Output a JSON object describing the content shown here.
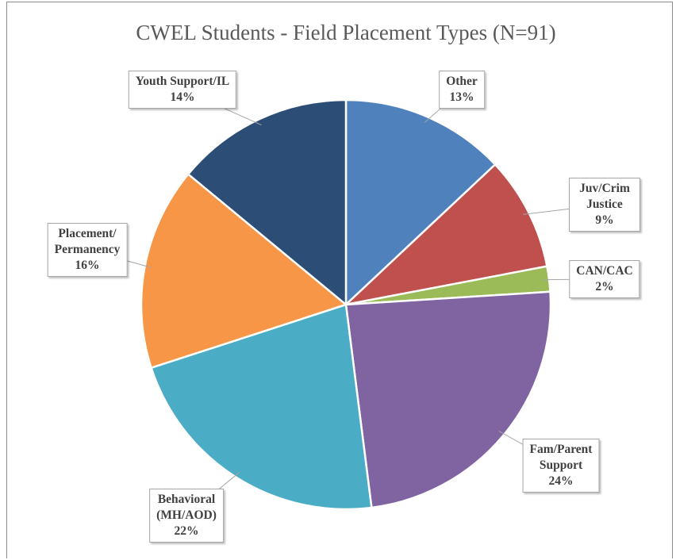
{
  "chart_data": {
    "type": "pie",
    "title": "CWEL Students - Field Placement Types (N=91)",
    "categories": [
      "Other",
      "Juv/Crim Justice",
      "CAN/CAC",
      "Fam/Parent\nSupport",
      "Behavioral\n(MH/AOD)",
      "Placement/\nPermanency",
      "Youth Support/IL"
    ],
    "values": [
      13,
      9,
      2,
      24,
      22,
      16,
      14
    ],
    "value_labels": [
      "13%",
      "9%",
      "2%",
      "24%",
      "22%",
      "16%",
      "14%"
    ],
    "colors": [
      "#4f81bd",
      "#c0504d",
      "#9bbb59",
      "#8064a2",
      "#4bacc6",
      "#f79646",
      "#2c4d75"
    ]
  }
}
